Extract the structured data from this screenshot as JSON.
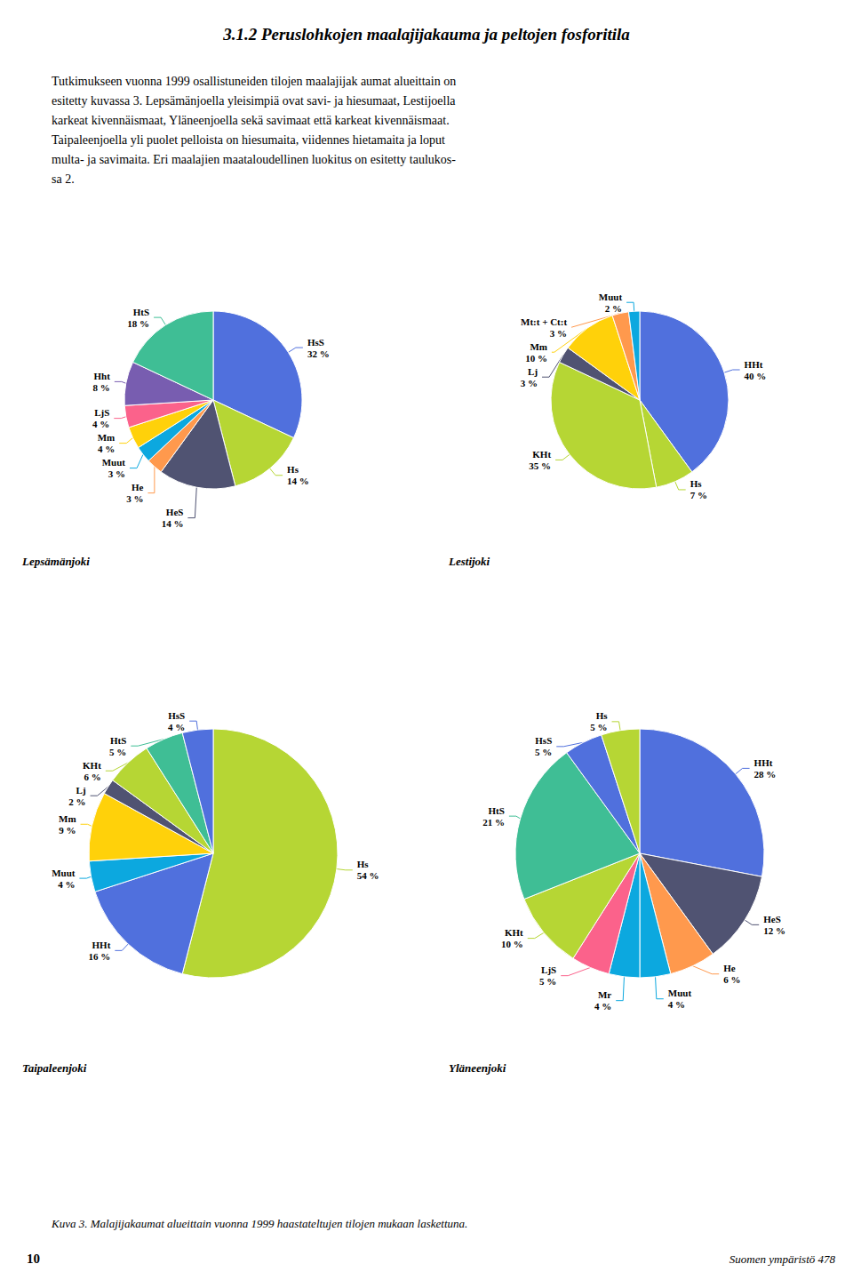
{
  "title": "3.1.2 Peruslohkojen maalajijakauma ja peltojen fosforitila",
  "annotations": [
    "Tutkimukseen vuonna 1999 osallistuneiden tilojen maalajijak aumat alueittain on\nesitetty kuvassa 3. Lepsämänjoella yleisimpiä ovat savi- ja hiesumaat, Lestijoella\nkarkeat kivennäismaat, Yläneenjoella sekä savimaat että karkeat kivennäismaat.\nTaipaleenjoella yli puolet pelloista on hiesumaita, viidennes hietamaita ja loput\nmulta- ja savimaita. Eri maalajien maataloudellinen luokitus on esitetty taulukos-\nsa 2.",
    "Kuva 3. Malajijakaumat alueittain vuonna 1999 haastateltujen tilojen mukaan laskettuna.",
    "10",
    "Suomen ympäristö 478"
  ],
  "chart_data": [
    {
      "type": "pie",
      "title": "Lepsämänjoki",
      "data_labels": true,
      "categories": [
        "HsS",
        "Hs",
        "HeS",
        "He",
        "Muut",
        "Mm",
        "LjS",
        "Hht",
        "HtS"
      ],
      "values": [
        32,
        14,
        14,
        3,
        3,
        4,
        4,
        8,
        18
      ],
      "value_labels": [
        "32 %",
        "14 %",
        "14 %",
        "3 %",
        "3 %",
        "4 %",
        "4 %",
        "8 %",
        "18 %"
      ]
    },
    {
      "type": "pie",
      "title": "Lestijoki",
      "data_labels": true,
      "categories": [
        "HHt",
        "Hs",
        "KHt",
        "Lj",
        "Mm",
        "Mt:t + Ct:t",
        "Muut"
      ],
      "values": [
        40,
        7,
        35,
        3,
        10,
        3,
        2
      ],
      "value_labels": [
        "40 %",
        "7 %",
        "35 %",
        "3 %",
        "10 %",
        "3 %",
        "2 %"
      ]
    },
    {
      "type": "pie",
      "title": "Taipaleenjoki",
      "data_labels": true,
      "categories": [
        "Hs",
        "HHt",
        "Muut",
        "Mm",
        "Lj",
        "KHt",
        "HtS",
        "HsS"
      ],
      "values": [
        54,
        16,
        4,
        9,
        2,
        6,
        5,
        4
      ],
      "value_labels": [
        "54 %",
        "16 %",
        "4 %",
        "9 %",
        "2 %",
        "6 %",
        "5 %",
        "4 %"
      ]
    },
    {
      "type": "pie",
      "title": "Yläneenjoki",
      "data_labels": true,
      "categories": [
        "HHt",
        "HeS",
        "He",
        "Muut",
        "Mr",
        "LjS",
        "KHt",
        "HtS",
        "HsS",
        "Hs"
      ],
      "values": [
        28,
        12,
        6,
        4,
        4,
        5,
        10,
        21,
        5,
        5
      ],
      "value_labels": [
        "28 %",
        "12 %",
        "6 %",
        "4 %",
        "4 %",
        "5 %",
        "10 %",
        "21 %",
        "5 %",
        "5 %"
      ]
    }
  ]
}
